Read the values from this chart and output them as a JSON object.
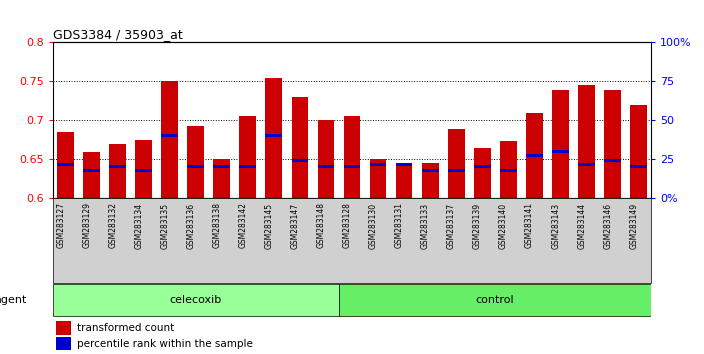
{
  "title": "GDS3384 / 35903_at",
  "samples": [
    "GSM283127",
    "GSM283129",
    "GSM283132",
    "GSM283134",
    "GSM283135",
    "GSM283136",
    "GSM283138",
    "GSM283142",
    "GSM283145",
    "GSM283147",
    "GSM283148",
    "GSM283128",
    "GSM283130",
    "GSM283131",
    "GSM283133",
    "GSM283137",
    "GSM283139",
    "GSM283140",
    "GSM283141",
    "GSM283143",
    "GSM283144",
    "GSM283146",
    "GSM283149"
  ],
  "bar_values": [
    0.685,
    0.659,
    0.67,
    0.675,
    0.75,
    0.693,
    0.65,
    0.705,
    0.755,
    0.73,
    0.7,
    0.705,
    0.65,
    0.645,
    0.645,
    0.689,
    0.664,
    0.674,
    0.71,
    0.739,
    0.745,
    0.739,
    0.72
  ],
  "percentile_values": [
    0.643,
    0.636,
    0.641,
    0.636,
    0.681,
    0.641,
    0.641,
    0.641,
    0.681,
    0.648,
    0.641,
    0.641,
    0.643,
    0.643,
    0.636,
    0.636,
    0.641,
    0.636,
    0.655,
    0.66,
    0.643,
    0.648,
    0.641
  ],
  "groups": {
    "celecoxib": [
      0,
      1,
      2,
      3,
      4,
      5,
      6,
      7,
      8,
      9,
      10
    ],
    "control": [
      11,
      12,
      13,
      14,
      15,
      16,
      17,
      18,
      19,
      20,
      21,
      22
    ]
  },
  "bar_color": "#CC0000",
  "percentile_color": "#0000CC",
  "ymin": 0.6,
  "ymax": 0.8,
  "yticks": [
    0.6,
    0.65,
    0.7,
    0.75,
    0.8
  ],
  "ytick_labels_left": [
    "0.6",
    "0.65",
    "0.7",
    "0.75",
    "0.8"
  ],
  "yticks_right": [
    0.0,
    0.25,
    0.5,
    0.75,
    1.0
  ],
  "ytick_labels_right": [
    "0%",
    "25",
    "50",
    "75",
    "100%"
  ],
  "bg_color_plot": "#ffffff",
  "bg_color_label": "#cccccc",
  "celecoxib_color": "#99ff99",
  "control_color": "#66ee66",
  "agent_label": "agent",
  "bar_width": 0.65
}
